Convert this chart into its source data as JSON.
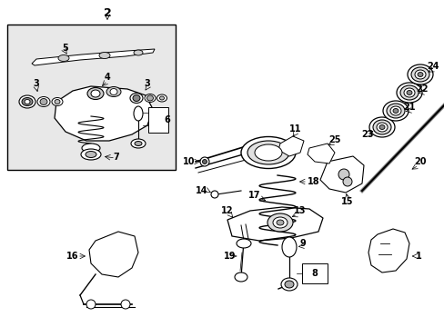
{
  "bg_color": "#ffffff",
  "line_color": "#000000",
  "figsize": [
    4.89,
    3.6
  ],
  "dpi": 100
}
